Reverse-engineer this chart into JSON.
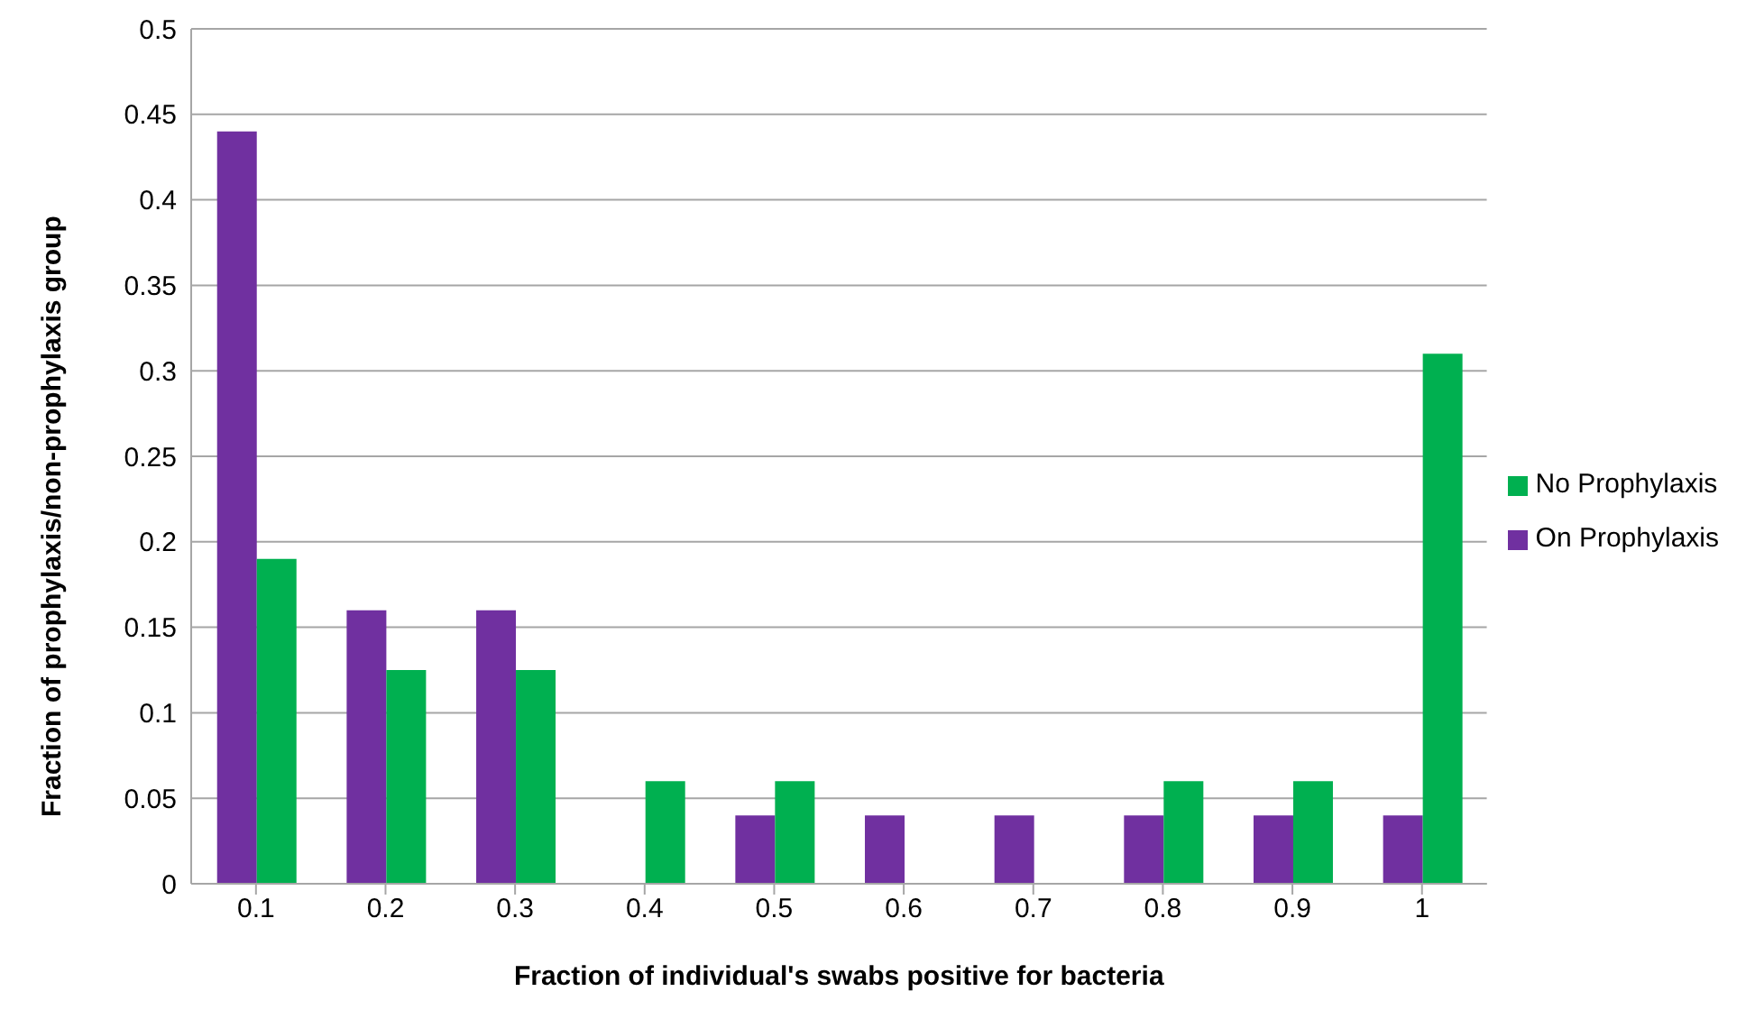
{
  "chart_data": {
    "type": "bar",
    "xlabel": "Fraction of individual's swabs positive for bacteria",
    "ylabel": "Fraction of prophylaxis/non-prophylaxis group",
    "categories": [
      "0.1",
      "0.2",
      "0.3",
      "0.4",
      "0.5",
      "0.6",
      "0.7",
      "0.8",
      "0.9",
      "1"
    ],
    "series": [
      {
        "name": "On Prophylaxis",
        "color": "#7030a0",
        "values": [
          0.44,
          0.16,
          0.16,
          0,
          0.04,
          0.04,
          0.04,
          0.04,
          0.04,
          0.04
        ]
      },
      {
        "name": "No Prophylaxis",
        "color": "#00b050",
        "values": [
          0.19,
          0.125,
          0.125,
          0.06,
          0.06,
          0,
          0,
          0.06,
          0.06,
          0.31
        ]
      }
    ],
    "ylim": [
      0,
      0.5
    ],
    "yticks": [
      0,
      0.05,
      0.1,
      0.15,
      0.2,
      0.25,
      0.3,
      0.35,
      0.4,
      0.45,
      0.5
    ],
    "grid": "y",
    "legend": "right"
  }
}
